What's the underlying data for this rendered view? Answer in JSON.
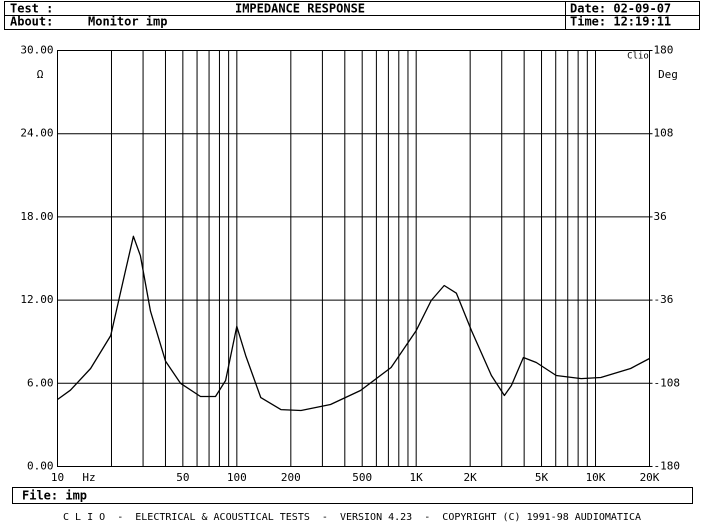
{
  "header": {
    "test_label": "Test :",
    "title": "IMPEDANCE RESPONSE",
    "date": "Date: 02-09-07",
    "about_label": "About:",
    "about": "Monitor imp",
    "time": "Time: 12:19:11"
  },
  "chart_data": {
    "type": "line",
    "y_label": "Ω",
    "y2_label": "Deg",
    "x_label": "Hz",
    "annotation": "Clio",
    "xscale": "log",
    "xlim": [
      10,
      20000
    ],
    "ylim": [
      0,
      30
    ],
    "y2lim": [
      -180,
      180
    ],
    "xticks": [
      10,
      50,
      100,
      200,
      500,
      {
        "value": 1000,
        "label": "1K"
      },
      {
        "value": 2000,
        "label": "2K"
      },
      {
        "value": 5000,
        "label": "5K"
      },
      {
        "value": 10000,
        "label": "10K"
      },
      {
        "value": 20000,
        "label": "20K"
      }
    ],
    "xgrid": [
      20,
      30,
      40,
      60,
      70,
      80,
      90,
      300,
      400,
      600,
      700,
      800,
      900,
      3000,
      4000,
      6000,
      7000,
      8000,
      9000
    ],
    "yticks": [
      {
        "value": 0,
        "label": "0.00"
      },
      {
        "value": 6,
        "label": "6.00"
      },
      {
        "value": 12,
        "label": "12.00"
      },
      {
        "value": 18,
        "label": "18.00"
      },
      {
        "value": 24,
        "label": "24.00"
      },
      {
        "value": 30,
        "label": "30.00"
      }
    ],
    "y2ticks": [
      -180,
      -108,
      -36,
      36,
      108,
      180
    ],
    "grid": true,
    "color": "#000000",
    "x": [
      10,
      11.8,
      15.3,
      19.8,
      23.9,
      26.5,
      29,
      33,
      40,
      48.5,
      62.7,
      76,
      86.6,
      100,
      112,
      136,
      176,
      228,
      333,
      489,
      725,
      1000,
      1212,
      1433,
      1675,
      2034,
      2626,
      3103,
      3395,
      3960,
      4677,
      6040,
      8317,
      10700,
      15700,
      20000
    ],
    "values": [
      4.83,
      5.5,
      7.07,
      9.44,
      14.1,
      16.6,
      15.2,
      11.2,
      7.6,
      6.0,
      5.05,
      5.05,
      6.2,
      10.1,
      8.0,
      4.97,
      4.1,
      4.04,
      4.47,
      5.48,
      7.14,
      9.8,
      11.97,
      13.05,
      12.5,
      9.8,
      6.56,
      5.12,
      5.84,
      7.86,
      7.5,
      6.56,
      6.34,
      6.42,
      7.07,
      7.79
    ]
  },
  "footer": {
    "file": "File: imp",
    "credits": "C L I O  -  ELECTRICAL & ACOUSTICAL TESTS  -  VERSION 4.23  -  COPYRIGHT (C) 1991-98 AUDIOMATICA"
  }
}
